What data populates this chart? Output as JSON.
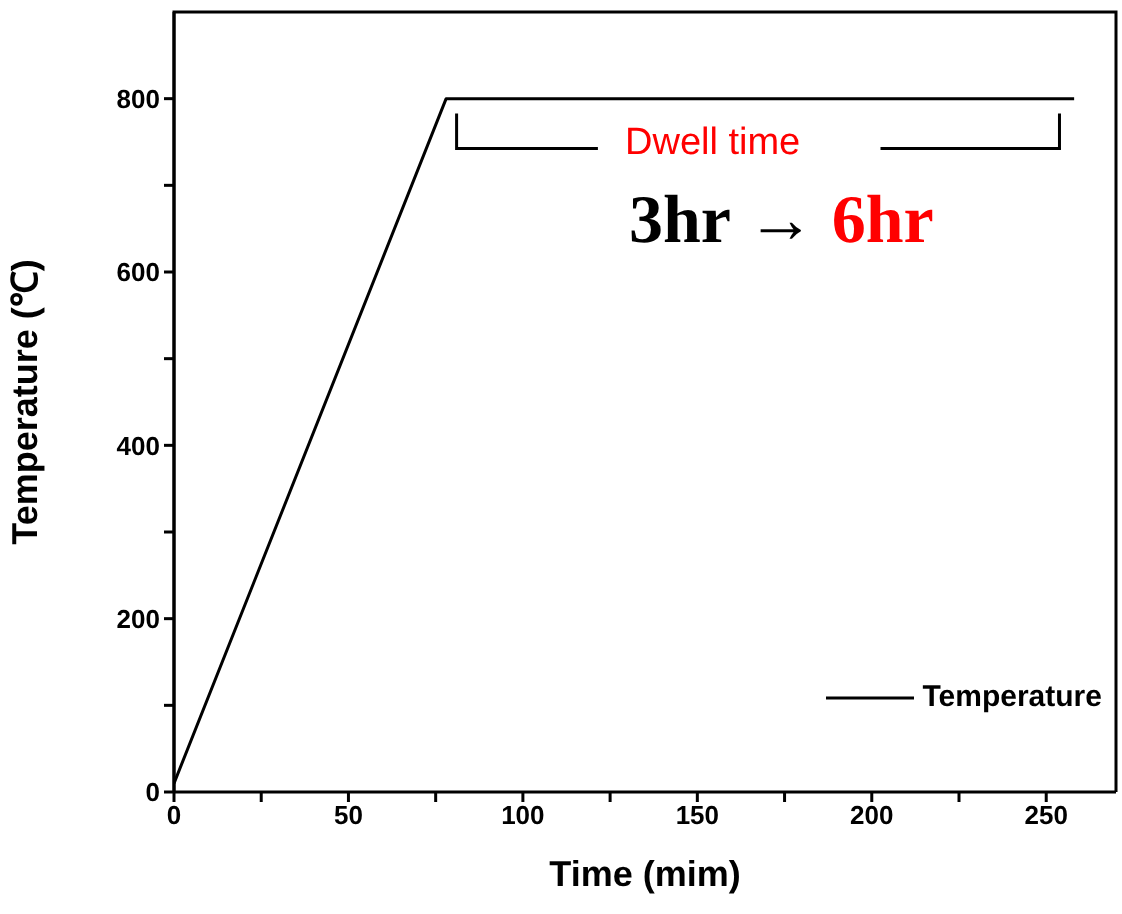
{
  "chart_data": {
    "type": "line",
    "xlabel": "Time (mim)",
    "ylabel": "Temperature (℃)",
    "x": [
      0,
      78,
      258
    ],
    "series": [
      {
        "name": "Temperature",
        "color": "#000000",
        "values": [
          10,
          800,
          800
        ]
      }
    ],
    "xlim": [
      0,
      270
    ],
    "ylim": [
      0,
      900
    ],
    "xticks": [
      0,
      {
        "value": 25,
        "label": null
      },
      50,
      {
        "value": 75,
        "label": null
      },
      100,
      {
        "value": 125,
        "label": null
      },
      150,
      {
        "value": 175,
        "label": null
      },
      200,
      {
        "value": 225,
        "label": null
      },
      250
    ],
    "yticks": [
      0,
      {
        "value": 100,
        "label": null
      },
      200,
      {
        "value": 300,
        "label": null
      },
      400,
      {
        "value": 500,
        "label": null
      },
      600,
      {
        "value": 700,
        "label": null
      },
      800
    ],
    "grid": false,
    "legend": "bottom right",
    "marker": "none",
    "line_style": "solid",
    "annotations": [
      "Dwell time",
      "3hr →",
      "6hr"
    ]
  }
}
